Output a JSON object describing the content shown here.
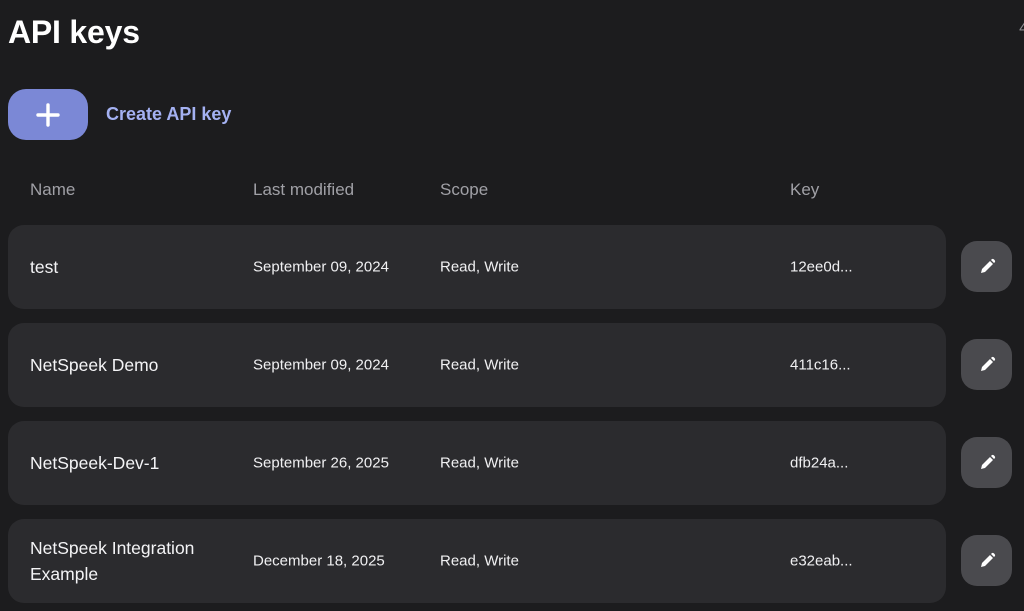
{
  "page": {
    "title": "API keys",
    "corner_fragment": "4"
  },
  "create": {
    "button_icon": "plus-icon",
    "label": "Create API key"
  },
  "table": {
    "headers": {
      "name": "Name",
      "last_modified": "Last modified",
      "scope": "Scope",
      "key": "Key"
    },
    "rows": [
      {
        "name": "test",
        "last_modified": "September 09, 2024",
        "scope": "Read, Write",
        "key": "12ee0d...",
        "action_icon": "pencil-icon"
      },
      {
        "name": "NetSpeek Demo",
        "last_modified": "September 09, 2024",
        "scope": "Read, Write",
        "key": "411c16...",
        "action_icon": "pencil-icon"
      },
      {
        "name": "NetSpeek-Dev-1",
        "last_modified": "September 26, 2025",
        "scope": "Read, Write",
        "key": "dfb24a...",
        "action_icon": "pencil-icon"
      },
      {
        "name": "NetSpeek Integration Example",
        "last_modified": "December 18, 2025",
        "scope": "Read, Write",
        "key": "e32eab...",
        "action_icon": "pencil-icon"
      }
    ]
  },
  "colors": {
    "background": "#1c1c1e",
    "row_background": "#2b2b2e",
    "accent_button": "#7b88d6",
    "accent_text": "#a4b1f2",
    "edit_button": "#4a4a4e"
  }
}
